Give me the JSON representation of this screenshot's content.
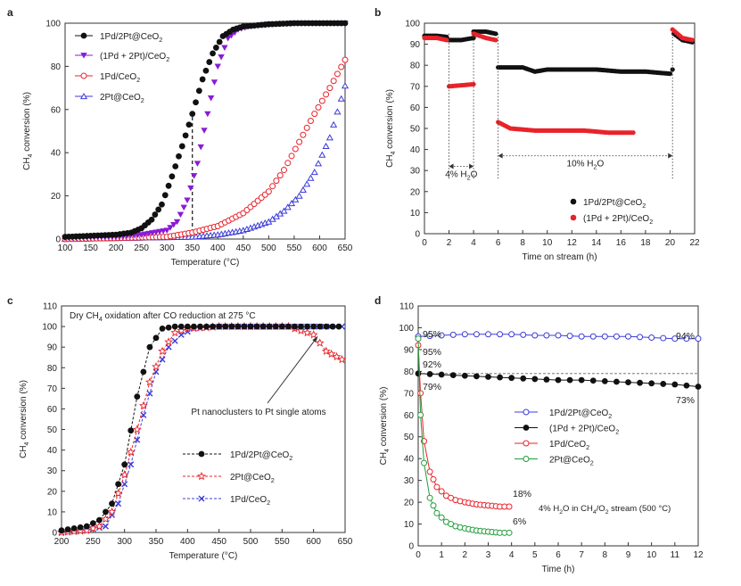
{
  "chart_data": [
    {
      "type": "line",
      "panel_label": "a",
      "xlabel": "Temperature (°C)",
      "ylabel": "CH4 conversion (%)",
      "xlim": [
        100,
        650
      ],
      "ylim": [
        0,
        100
      ],
      "xticks": [
        100,
        150,
        200,
        250,
        300,
        350,
        400,
        450,
        500,
        550,
        600,
        650
      ],
      "yticks": [
        0,
        20,
        40,
        60,
        80,
        100
      ],
      "vline_x": 350,
      "series": [
        {
          "name": "1Pd/2Pt@CeO2",
          "label_parts": [
            "1Pd/2Pt@CeO",
            "2"
          ],
          "color": "#111111",
          "marker": "circle-filled",
          "points": [
            [
              100,
              1
            ],
            [
              150,
              1.5
            ],
            [
              200,
              2
            ],
            [
              230,
              3
            ],
            [
              250,
              5
            ],
            [
              270,
              9
            ],
            [
              290,
              16
            ],
            [
              310,
              29
            ],
            [
              330,
              43
            ],
            [
              350,
              58
            ],
            [
              370,
              74
            ],
            [
              390,
              86
            ],
            [
              410,
              94
            ],
            [
              430,
              97
            ],
            [
              450,
              98.5
            ],
            [
              500,
              99.5
            ],
            [
              550,
              100
            ],
            [
              600,
              100
            ],
            [
              650,
              100
            ]
          ]
        },
        {
          "name": "(1Pd + 2Pt)/CeO2",
          "label_parts": [
            "(1Pd + 2Pt)/CeO",
            "2"
          ],
          "color": "#8a1bd6",
          "marker": "triangle-down",
          "points": [
            [
              100,
              0.5
            ],
            [
              200,
              1
            ],
            [
              250,
              2
            ],
            [
              300,
              4
            ],
            [
              320,
              8
            ],
            [
              340,
              18
            ],
            [
              360,
              35
            ],
            [
              380,
              58
            ],
            [
              400,
              80
            ],
            [
              420,
              93
            ],
            [
              440,
              97
            ],
            [
              460,
              98.5
            ],
            [
              500,
              99.5
            ],
            [
              550,
              100
            ],
            [
              600,
              100
            ],
            [
              650,
              100
            ]
          ]
        },
        {
          "name": "1Pd/CeO2",
          "label_parts": [
            "1Pd/CeO",
            "2"
          ],
          "color": "#e8232a",
          "marker": "circle-open",
          "points": [
            [
              100,
              0
            ],
            [
              300,
              1
            ],
            [
              350,
              3
            ],
            [
              400,
              6
            ],
            [
              450,
              12
            ],
            [
              500,
              22
            ],
            [
              530,
              32
            ],
            [
              560,
              45
            ],
            [
              590,
              58
            ],
            [
              620,
              70
            ],
            [
              650,
              83
            ]
          ]
        },
        {
          "name": "2Pt@CeO2",
          "label_parts": [
            "2Pt@CeO",
            "2"
          ],
          "color": "#3b3bd9",
          "marker": "triangle-open",
          "points": [
            [
              100,
              0
            ],
            [
              350,
              1
            ],
            [
              400,
              2
            ],
            [
              450,
              4
            ],
            [
              500,
              8
            ],
            [
              530,
              13
            ],
            [
              560,
              20
            ],
            [
              590,
              31
            ],
            [
              620,
              47
            ],
            [
              650,
              71
            ]
          ]
        }
      ]
    },
    {
      "type": "scatter",
      "panel_label": "b",
      "xlabel": "Time on stream (h)",
      "ylabel": "CH4 conversion (%)",
      "xlim": [
        0,
        22
      ],
      "ylim": [
        0,
        100
      ],
      "xticks": [
        0,
        2,
        4,
        6,
        8,
        10,
        12,
        14,
        16,
        18,
        20,
        22
      ],
      "yticks": [
        0,
        10,
        20,
        30,
        40,
        50,
        60,
        70,
        80,
        90,
        100
      ],
      "annotations": [
        {
          "text": "4% H",
          "sub": "2",
          "text2": "O",
          "x_range": [
            2,
            4
          ],
          "y": 32
        },
        {
          "text": "10% H",
          "sub": "2",
          "text2": "O",
          "x_range": [
            6,
            20.2
          ],
          "y": 37
        }
      ],
      "series": [
        {
          "name": "1Pd/2Pt@CeO2",
          "label_parts": [
            "1Pd/2Pt@CeO",
            "2"
          ],
          "color": "#111111",
          "segments": [
            [
              [
                0,
                94
              ],
              [
                1,
                94
              ],
              [
                1.8,
                93.5
              ]
            ],
            [
              [
                2,
                92
              ],
              [
                3,
                92
              ],
              [
                4,
                93
              ]
            ],
            [
              [
                4,
                96
              ],
              [
                5,
                96
              ],
              [
                5.8,
                95
              ]
            ],
            [
              [
                6,
                79
              ],
              [
                8,
                79
              ],
              [
                9,
                77
              ],
              [
                10,
                78
              ],
              [
                12,
                78
              ],
              [
                14,
                78
              ],
              [
                16,
                77
              ],
              [
                18,
                77
              ],
              [
                20,
                76
              ]
            ],
            [
              [
                20.2,
                78
              ]
            ],
            [
              [
                20.3,
                95
              ],
              [
                21,
                92
              ],
              [
                21.8,
                91
              ]
            ]
          ]
        },
        {
          "name": "(1Pd + 2Pt)/CeO2",
          "label_parts": [
            "(1Pd + 2Pt)/CeO",
            "2"
          ],
          "color": "#e8232a",
          "segments": [
            [
              [
                0,
                93
              ],
              [
                1,
                93
              ],
              [
                1.8,
                92
              ]
            ],
            [
              [
                2,
                70
              ],
              [
                3,
                70.5
              ],
              [
                4,
                71
              ]
            ],
            [
              [
                4,
                95
              ],
              [
                5,
                93
              ],
              [
                5.8,
                92
              ]
            ],
            [
              [
                6,
                53
              ],
              [
                7,
                50
              ],
              [
                9,
                49
              ],
              [
                11,
                49
              ],
              [
                13,
                49
              ],
              [
                15,
                48
              ],
              [
                17,
                48
              ]
            ],
            [
              [
                20.2,
                97
              ],
              [
                21,
                93
              ],
              [
                21.8,
                92
              ]
            ]
          ]
        }
      ]
    },
    {
      "type": "line",
      "panel_label": "c",
      "title_parts": [
        "Dry CH",
        "4",
        " oxidation after CO reduction at 275 °C"
      ],
      "xlabel": "Temperature (°C)",
      "ylabel": "CH4 conversion (%)",
      "xlim": [
        200,
        650
      ],
      "ylim": [
        0,
        110
      ],
      "xticks": [
        200,
        250,
        300,
        350,
        400,
        450,
        500,
        550,
        600,
        650
      ],
      "yticks": [
        0,
        10,
        20,
        30,
        40,
        50,
        60,
        70,
        80,
        90,
        100,
        110
      ],
      "annotation": {
        "text": "Pt nanoclusters to Pt single atoms",
        "arrow_to": [
          612,
          96
        ]
      },
      "series": [
        {
          "name": "1Pd/2Pt@CeO2",
          "label_parts": [
            "1Pd/2Pt@CeO",
            "2"
          ],
          "color": "#111111",
          "marker": "circle-filled",
          "points": [
            [
              200,
              1
            ],
            [
              220,
              2
            ],
            [
              240,
              3
            ],
            [
              260,
              6
            ],
            [
              280,
              14
            ],
            [
              300,
              33
            ],
            [
              320,
              66
            ],
            [
              340,
              90
            ],
            [
              360,
              99
            ],
            [
              380,
              100
            ],
            [
              400,
              100
            ],
            [
              450,
              100
            ],
            [
              500,
              100
            ],
            [
              550,
              100
            ],
            [
              600,
              100
            ],
            [
              640,
              100
            ]
          ]
        },
        {
          "name": "2Pt@CeO2",
          "label_parts": [
            "2Pt@CeO",
            "2"
          ],
          "color": "#e8232a",
          "marker": "star-open",
          "points": [
            [
              200,
              0
            ],
            [
              240,
              1
            ],
            [
              260,
              3
            ],
            [
              280,
              10
            ],
            [
              300,
              28
            ],
            [
              320,
              50
            ],
            [
              340,
              73
            ],
            [
              360,
              88
            ],
            [
              380,
              97
            ],
            [
              400,
              99
            ],
            [
              450,
              100
            ],
            [
              500,
              100
            ],
            [
              560,
              100
            ],
            [
              600,
              96
            ],
            [
              620,
              88
            ],
            [
              645,
              84
            ]
          ]
        },
        {
          "name": "1Pd/CeO2",
          "label_parts": [
            "1Pd/CeO",
            "2"
          ],
          "color": "#3b3bd9",
          "marker": "x",
          "points": [
            [
              200,
              0
            ],
            [
              240,
              1
            ],
            [
              270,
              3
            ],
            [
              290,
              14
            ],
            [
              310,
              33
            ],
            [
              330,
              57
            ],
            [
              350,
              78
            ],
            [
              370,
              90
            ],
            [
              390,
              96
            ],
            [
              410,
              99
            ],
            [
              450,
              100
            ],
            [
              500,
              100
            ],
            [
              550,
              100
            ],
            [
              600,
              100
            ],
            [
              645,
              100
            ]
          ]
        }
      ]
    },
    {
      "type": "line",
      "panel_label": "d",
      "xlabel": "Time (h)",
      "ylabel": "CH4 conversion (%)",
      "xlim": [
        0,
        12
      ],
      "ylim": [
        0,
        110
      ],
      "xticks": [
        0,
        1,
        2,
        3,
        4,
        5,
        6,
        7,
        8,
        9,
        10,
        11,
        12
      ],
      "yticks": [
        0,
        10,
        20,
        30,
        40,
        50,
        60,
        70,
        80,
        90,
        100,
        110
      ],
      "hline_y": 79,
      "condition_parts": [
        "4% H",
        "2",
        "O in CH",
        "4",
        "/O",
        "2",
        " stream (500 °C)"
      ],
      "value_labels": [
        {
          "text": "95%",
          "color": "#3b3bd9"
        },
        {
          "text": "94%",
          "color": "#222222"
        },
        {
          "text": "95%",
          "color": "#1f9e3a"
        },
        {
          "text": "92%",
          "color": "#e8232a"
        },
        {
          "text": "79%",
          "color": "#222222"
        },
        {
          "text": "73%",
          "color": "#222222"
        },
        {
          "text": "18%",
          "color": "#e8232a"
        },
        {
          "text": "6%",
          "color": "#1f9e3a"
        }
      ],
      "series": [
        {
          "name": "1Pd/2Pt@CeO2",
          "label_parts": [
            "1Pd/2Pt@CeO",
            "2"
          ],
          "color": "#3b3bd9",
          "marker": "circle-open",
          "points": [
            [
              0,
              96
            ],
            [
              1,
              96.5
            ],
            [
              2,
              97
            ],
            [
              3,
              97
            ],
            [
              4,
              97
            ],
            [
              5,
              96.5
            ],
            [
              6,
              96.5
            ],
            [
              7,
              96
            ],
            [
              8,
              96
            ],
            [
              9,
              96
            ],
            [
              10,
              95.5
            ],
            [
              11,
              95
            ],
            [
              12,
              95
            ]
          ]
        },
        {
          "name": "(1Pd + 2Pt)/CeO2",
          "label_parts": [
            "(1Pd + 2Pt)/CeO",
            "2"
          ],
          "color": "#111111",
          "marker": "circle-filled",
          "points": [
            [
              0,
              79
            ],
            [
              1,
              78.5
            ],
            [
              2,
              78
            ],
            [
              3,
              77.5
            ],
            [
              4,
              77
            ],
            [
              5,
              76.5
            ],
            [
              6,
              76
            ],
            [
              7,
              76
            ],
            [
              8,
              75.5
            ],
            [
              9,
              75
            ],
            [
              10,
              74.5
            ],
            [
              11,
              74
            ],
            [
              12,
              73
            ]
          ]
        },
        {
          "name": "1Pd/CeO2",
          "label_parts": [
            "1Pd/CeO",
            "2"
          ],
          "color": "#e8232a",
          "marker": "circle-open",
          "points": [
            [
              0,
              92
            ],
            [
              0.1,
              70
            ],
            [
              0.25,
              48
            ],
            [
              0.5,
              34
            ],
            [
              0.8,
              27
            ],
            [
              1.2,
              23
            ],
            [
              1.6,
              21
            ],
            [
              2,
              20
            ],
            [
              2.5,
              19
            ],
            [
              3,
              18.5
            ],
            [
              3.5,
              18
            ],
            [
              3.9,
              18
            ]
          ]
        },
        {
          "name": "2Pt@CeO2",
          "label_parts": [
            "2Pt@CeO",
            "2"
          ],
          "color": "#1f9e3a",
          "marker": "circle-open",
          "points": [
            [
              0,
              95
            ],
            [
              0.1,
              60
            ],
            [
              0.25,
              38
            ],
            [
              0.5,
              22
            ],
            [
              0.8,
              15
            ],
            [
              1.2,
              11
            ],
            [
              1.6,
              9
            ],
            [
              2,
              8
            ],
            [
              2.5,
              7
            ],
            [
              3,
              6.5
            ],
            [
              3.5,
              6
            ],
            [
              3.9,
              6
            ]
          ]
        }
      ]
    }
  ]
}
